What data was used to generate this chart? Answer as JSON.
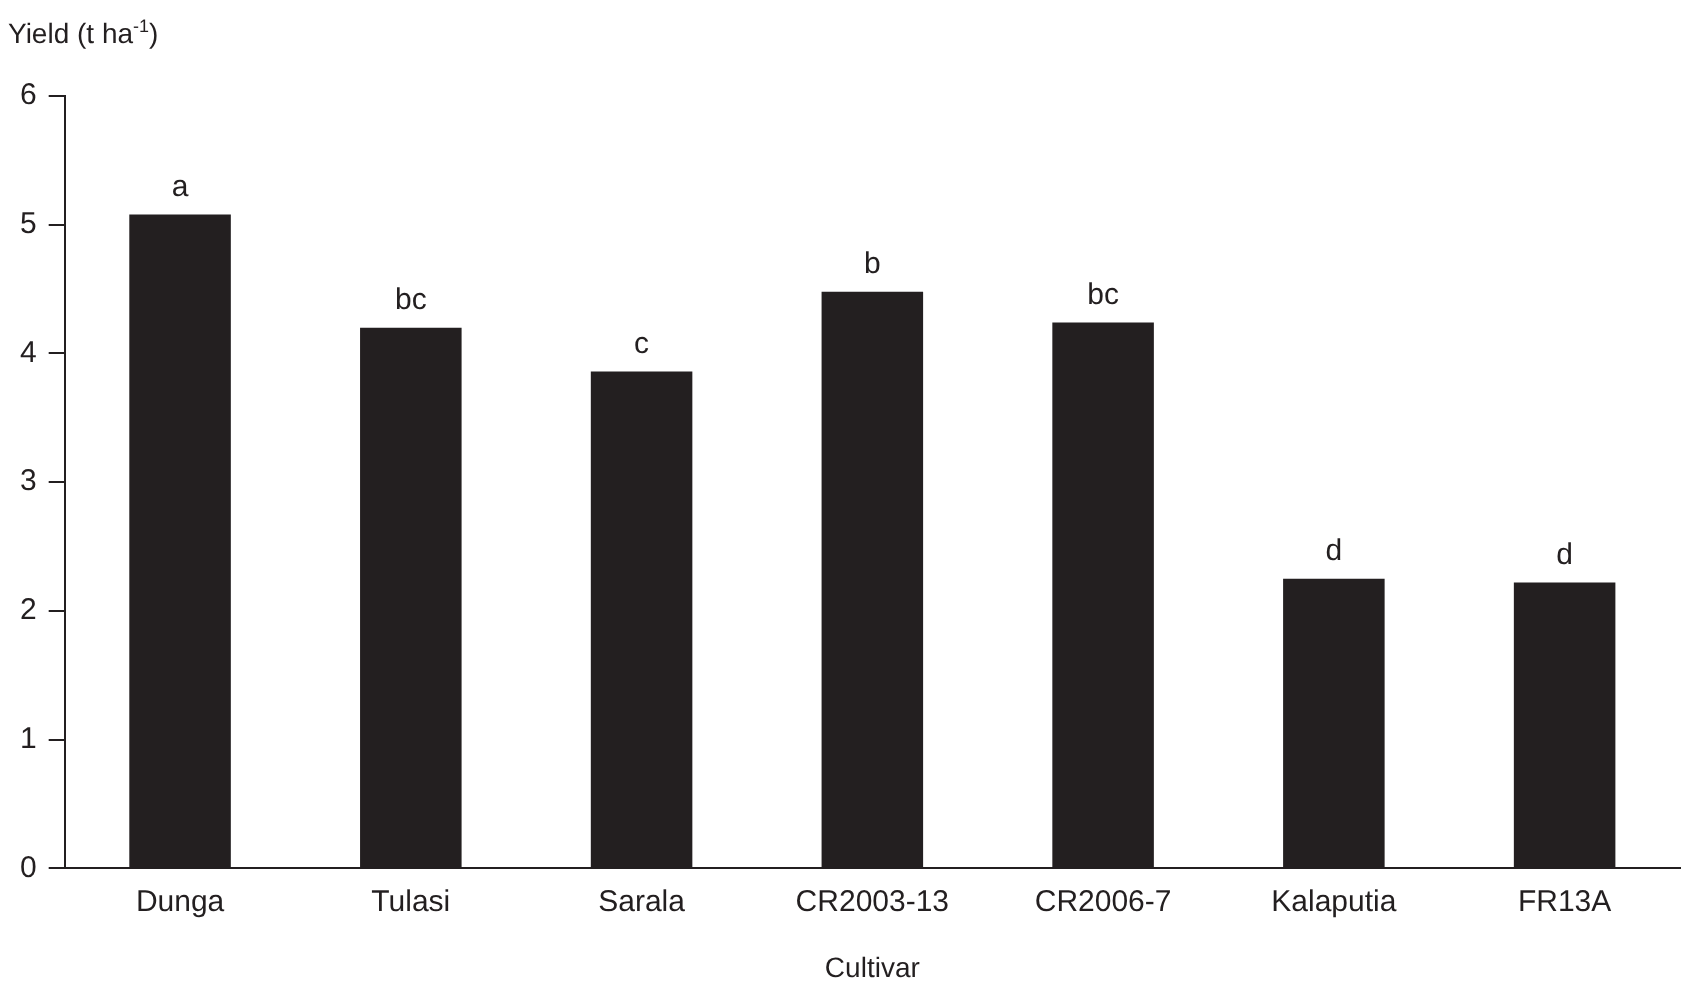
{
  "chart_data": {
    "type": "bar",
    "ylabel": "Yield (t ha$^{-1}$)",
    "xlabel": "Cultivar",
    "categories": [
      "Dunga",
      "Tulasi",
      "Sarala",
      "CR2003-13",
      "CR2006-7",
      "Kalaputia",
      "FR13A"
    ],
    "values": [
      5.08,
      4.2,
      3.86,
      4.48,
      4.24,
      2.25,
      2.22
    ],
    "color": "#231f20",
    "ylim": [
      0,
      6
    ],
    "yticks": [
      0,
      1,
      2,
      3,
      4,
      5,
      6
    ],
    "annotations": [
      {
        "text": "a",
        "x": "Dunga",
        "y": 5.08
      },
      {
        "text": "bc",
        "x": "Tulasi",
        "y": 4.2
      },
      {
        "text": "c",
        "x": "Sarala",
        "y": 3.86
      },
      {
        "text": "b",
        "x": "CR2003-13",
        "y": 4.48
      },
      {
        "text": "bc",
        "x": "CR2006-7",
        "y": 4.24
      },
      {
        "text": "d",
        "x": "Kalaputia",
        "y": 2.25
      },
      {
        "text": "d",
        "x": "FR13A",
        "y": 2.22
      }
    ]
  }
}
